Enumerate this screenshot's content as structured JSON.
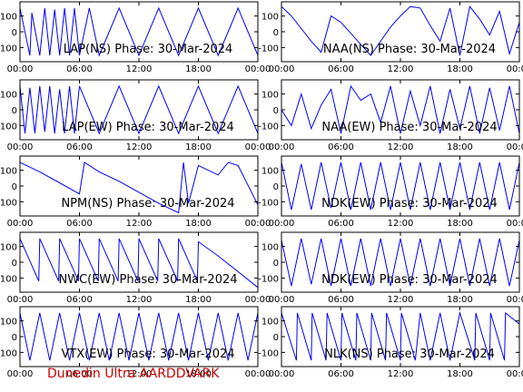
{
  "footer": "Dunedin Ultra AARDDVARK",
  "chart_data": {
    "type": "line",
    "y_ticks": [
      100,
      0,
      -100
    ],
    "ylim": [
      -190,
      190
    ],
    "xlim": [
      0,
      24
    ],
    "x_ticks": [
      0,
      6,
      12,
      18,
      24
    ],
    "x_tick_labels": [
      "00:00",
      "06:00",
      "12:00",
      "18:00",
      "00:00"
    ],
    "line_color": "#0000ff",
    "grid": false,
    "panels": [
      {
        "label": "LAP(NS) Phase: 30-Mar-2024",
        "x": [
          0,
          1,
          1.2,
          2,
          2.5,
          3,
          3.5,
          4,
          4.5,
          5,
          5.5,
          6,
          7,
          8,
          10,
          12,
          14,
          16,
          18,
          20,
          22,
          24
        ],
        "y": [
          150,
          -150,
          120,
          -150,
          150,
          -150,
          140,
          -150,
          150,
          -150,
          150,
          -150,
          150,
          -150,
          150,
          -150,
          150,
          -150,
          150,
          -150,
          150,
          -150
        ]
      },
      {
        "label": "NAA(NS) Phase: 30-Mar-2024",
        "x": [
          0,
          1,
          2,
          3,
          4,
          5,
          6,
          7,
          8,
          9,
          10,
          11,
          12,
          13,
          14,
          15,
          16,
          17,
          18,
          19,
          20,
          21,
          22,
          23,
          24
        ],
        "y": [
          160,
          100,
          20,
          -60,
          -130,
          100,
          60,
          -10,
          -80,
          -150,
          -60,
          30,
          100,
          160,
          150,
          40,
          -60,
          150,
          -150,
          160,
          80,
          -20,
          130,
          -140,
          60
        ]
      },
      {
        "label": "LAP(EW) Phase: 30-Mar-2024",
        "x": [
          0,
          0.5,
          1,
          1.5,
          2,
          2.5,
          3,
          3.5,
          4,
          4.5,
          5,
          5.5,
          6,
          8,
          10,
          12,
          14,
          16,
          18,
          20,
          22,
          24
        ],
        "y": [
          150,
          -150,
          140,
          -150,
          150,
          -140,
          150,
          -150,
          130,
          -150,
          150,
          -150,
          150,
          -150,
          150,
          -150,
          150,
          -150,
          150,
          -150,
          150,
          -150
        ]
      },
      {
        "label": "NAA(EW) Phase: 30-Mar-2024",
        "x": [
          0,
          1,
          2,
          3,
          4,
          5,
          6,
          7,
          8,
          9,
          10,
          11,
          12,
          13,
          14,
          15,
          16,
          17,
          18,
          19,
          20,
          21,
          22,
          23,
          24
        ],
        "y": [
          0,
          -100,
          100,
          -120,
          30,
          130,
          -150,
          150,
          60,
          100,
          -80,
          150,
          -150,
          120,
          -100,
          150,
          -150,
          130,
          -120,
          150,
          -150,
          140,
          -130,
          150,
          -150
        ]
      },
      {
        "label": "NPM(NS) Phase: 30-Mar-2024",
        "x": [
          0,
          2,
          4,
          6,
          6.5,
          8,
          10,
          12,
          14,
          16,
          16.5,
          17,
          18,
          20,
          21,
          22,
          24
        ],
        "y": [
          150,
          90,
          20,
          -50,
          150,
          90,
          30,
          -40,
          -110,
          -170,
          150,
          -110,
          130,
          70,
          150,
          130,
          -120
        ]
      },
      {
        "label": "NDK(EW) Phase: 30-Mar-2024",
        "x": [
          0,
          1,
          2,
          3,
          4,
          5,
          6,
          7,
          8,
          9,
          10,
          11,
          12,
          13,
          14,
          15,
          16,
          17,
          18,
          19,
          20,
          21,
          22,
          23,
          24
        ],
        "y": [
          150,
          -150,
          140,
          -150,
          150,
          -140,
          150,
          -150,
          150,
          -150,
          150,
          -150,
          150,
          -150,
          150,
          -150,
          150,
          -150,
          150,
          -150,
          150,
          -150,
          150,
          -150,
          150
        ]
      },
      {
        "label": "NWC(EW) Phase: 30-Mar-2024",
        "x": [
          0,
          1.9,
          2,
          3.9,
          4,
          5.9,
          6,
          7.9,
          8,
          9.9,
          10,
          11.9,
          12,
          13.9,
          14,
          15.9,
          16,
          17.9,
          18,
          20,
          22,
          24
        ],
        "y": [
          150,
          -120,
          150,
          -120,
          150,
          -120,
          150,
          -120,
          150,
          -120,
          150,
          -120,
          150,
          -120,
          150,
          -120,
          150,
          -120,
          130,
          40,
          -60,
          -160
        ]
      },
      {
        "label": "NDK(EW) Phase: 30-Mar-2024",
        "x": [
          0,
          1,
          2,
          3,
          4,
          5,
          6,
          7,
          8,
          9,
          10,
          11,
          12,
          13,
          14,
          15,
          16,
          17,
          18,
          19,
          20,
          21,
          22,
          23,
          24
        ],
        "y": [
          140,
          -150,
          150,
          -140,
          150,
          -150,
          150,
          -150,
          150,
          -150,
          150,
          -150,
          150,
          -150,
          150,
          -150,
          150,
          -150,
          150,
          -150,
          150,
          -150,
          150,
          -150,
          140
        ]
      },
      {
        "label": "VTX(EW) Phase: 30-Mar-2024",
        "x": [
          0,
          1,
          2,
          3,
          4,
          5,
          6,
          7,
          8,
          9,
          10,
          11,
          12,
          13,
          14,
          15,
          16,
          17,
          18,
          19,
          20,
          21,
          22,
          23,
          24
        ],
        "y": [
          150,
          -150,
          150,
          -150,
          150,
          -150,
          150,
          -150,
          150,
          -150,
          150,
          -150,
          150,
          -150,
          150,
          -150,
          150,
          -150,
          150,
          -150,
          150,
          -150,
          150,
          -150,
          150
        ]
      },
      {
        "label": "NLK(NS) Phase: 30-Mar-2024",
        "x": [
          0,
          1.5,
          1.6,
          3,
          3.1,
          4.5,
          4.6,
          6,
          6.1,
          7.5,
          7.6,
          9,
          9.1,
          10.5,
          10.6,
          12,
          12.1,
          13.5,
          14,
          15,
          16,
          17,
          18,
          19.5,
          19.6,
          21,
          21.1,
          22.5,
          22.6,
          24
        ],
        "y": [
          150,
          -150,
          150,
          -150,
          150,
          -150,
          150,
          -150,
          150,
          -150,
          150,
          -150,
          150,
          -150,
          150,
          -150,
          150,
          -150,
          150,
          -150,
          150,
          -150,
          150,
          -150,
          150,
          -150,
          150,
          -150,
          150,
          80
        ]
      }
    ]
  }
}
